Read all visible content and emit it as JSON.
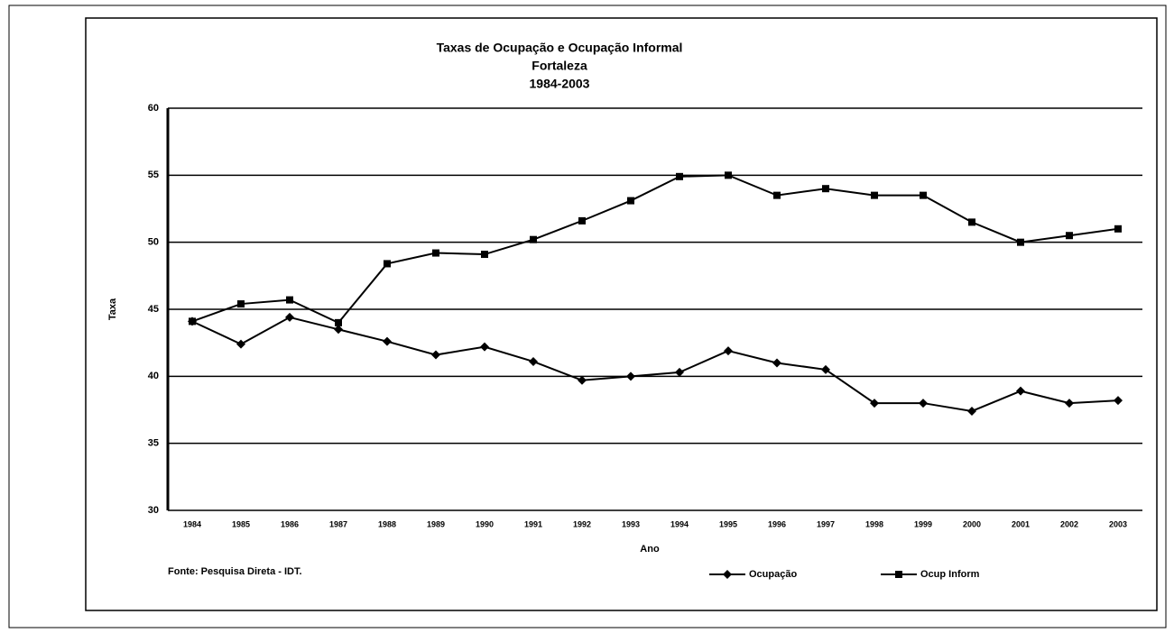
{
  "chart_data": {
    "type": "line",
    "title": "Taxas de Ocupação e Ocupação Informal",
    "subtitle": [
      "Fortaleza",
      "1984-2003"
    ],
    "y_label": "Taxa",
    "x_label": "Ano",
    "note": "Fonte: Pesquisa Direta - IDT.",
    "categories": [
      "1984",
      "1985",
      "1986",
      "1987",
      "1988",
      "1989",
      "1990",
      "1991",
      "1992",
      "1993",
      "1994",
      "1995",
      "1996",
      "1997",
      "1998",
      "1999",
      "2000",
      "2001",
      "2002",
      "2003"
    ],
    "series": [
      {
        "name": "Ocupação",
        "color": "#000000",
        "marker": "diamond",
        "values": [
          44.1,
          42.4,
          44.4,
          43.5,
          42.6,
          41.6,
          42.2,
          41.1,
          39.7,
          40.0,
          40.3,
          41.9,
          41.0,
          40.5,
          38.0,
          38.0,
          37.4,
          38.9,
          38.0,
          38.2
        ]
      },
      {
        "name": "Ocup Inform",
        "color": "#000000",
        "marker": "square",
        "values": [
          44.1,
          45.4,
          45.7,
          44.0,
          48.4,
          49.2,
          49.1,
          50.2,
          51.6,
          53.1,
          54.9,
          55.0,
          53.5,
          54.0,
          53.5,
          53.5,
          51.5,
          50.0,
          50.5,
          51.0
        ]
      }
    ],
    "ylim": [
      30,
      60
    ],
    "yticks": [
      30,
      35,
      40,
      45,
      50,
      55,
      60
    ],
    "grid": true,
    "legend": "bottom"
  }
}
